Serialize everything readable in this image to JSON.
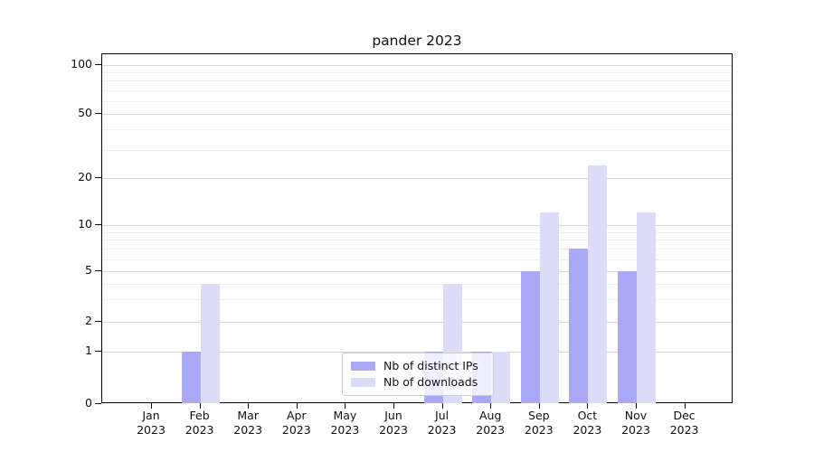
{
  "chart_data": {
    "type": "bar",
    "title": "pander 2023",
    "categories": [
      "Jan",
      "Feb",
      "Mar",
      "Apr",
      "May",
      "Jun",
      "Jul",
      "Aug",
      "Sep",
      "Oct",
      "Nov",
      "Dec"
    ],
    "x_year_label": "2023",
    "series": [
      {
        "name": "Nb of distinct IPs",
        "color": "#a9a9f7",
        "values": [
          0,
          1,
          0,
          0,
          0,
          0,
          1,
          1,
          5,
          7,
          5,
          0
        ]
      },
      {
        "name": "Nb of downloads",
        "color": "#dcdcf9",
        "values": [
          0,
          4,
          0,
          0,
          0,
          0,
          4,
          1,
          12,
          24,
          12,
          0
        ]
      }
    ],
    "y_axis": {
      "scale": "log-like (linear 0-1, log above 1)",
      "ticks": [
        0,
        1,
        2,
        5,
        10,
        20,
        50,
        100
      ],
      "minor_ticks": [
        3,
        4,
        6,
        7,
        8,
        9,
        30,
        40,
        60,
        70,
        80,
        90
      ],
      "ylim": [
        0,
        117
      ]
    },
    "legend": {
      "position": "lower center"
    },
    "grid": "on",
    "xlabel": "",
    "ylabel": ""
  }
}
